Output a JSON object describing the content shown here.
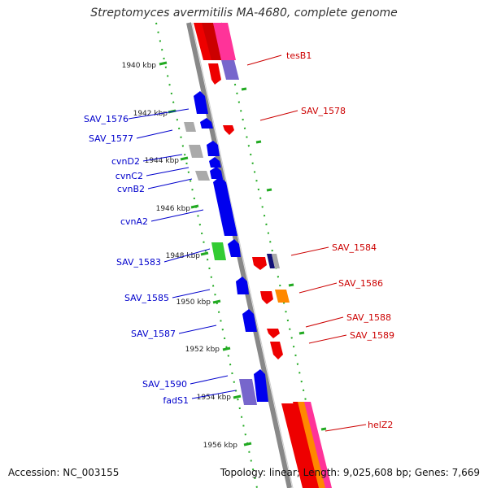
{
  "title": "Streptomyces avermitilis MA-4680, complete genome",
  "footer": {
    "accession": "Accession: NC_003155",
    "summary": "Topology: linear; Length: 9,025,608 bp; Genes: 7,669"
  },
  "ticks": [
    {
      "label": "1940 kbp",
      "kbp": 1940
    },
    {
      "label": "1942 kbp",
      "kbp": 1942
    },
    {
      "label": "1944 kbp",
      "kbp": 1944
    },
    {
      "label": "1946 kbp",
      "kbp": 1946
    },
    {
      "label": "1948 kbp",
      "kbp": 1948
    },
    {
      "label": "1950 kbp",
      "kbp": 1950
    },
    {
      "label": "1952 kbp",
      "kbp": 1952
    },
    {
      "label": "1954 kbp",
      "kbp": 1954
    },
    {
      "label": "1956 kbp",
      "kbp": 1956
    }
  ],
  "left_labels": [
    "SAV_1576",
    "SAV_1577",
    "cvnD2",
    "cvnC2",
    "cvnB2",
    "cvnA2",
    "SAV_1583",
    "SAV_1585",
    "SAV_1587",
    "SAV_1590",
    "fadS1"
  ],
  "right_labels": [
    "tesB1",
    "SAV_1578",
    "SAV_1584",
    "SAV_1586",
    "SAV_1588",
    "SAV_1589",
    "helZ2"
  ],
  "colors": {
    "left_label": "#0000cc",
    "right_label": "#cc0000",
    "backbone": "#888888",
    "tick": "#22aa22",
    "forward_gene": "#0000ee",
    "reverse_gene": "#ee0000",
    "pseudo_gene": "#aaaaaa",
    "rna_gene": "#33cc33",
    "orange_gene": "#ff8800",
    "purple_gene": "#7766cc",
    "pink_gene": "#ff3399"
  }
}
